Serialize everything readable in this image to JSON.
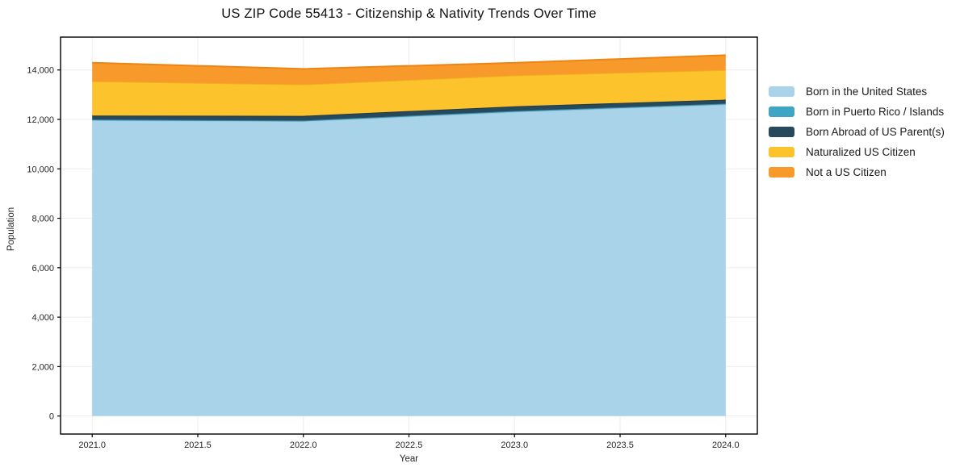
{
  "title": "US ZIP Code 55413 - Citizenship & Nativity Trends Over Time",
  "chart_data": {
    "type": "area",
    "stacked": true,
    "title": "US ZIP Code 55413 - Citizenship & Nativity Trends Over Time",
    "xlabel": "Year",
    "ylabel": "Population",
    "x": [
      2021,
      2022,
      2023,
      2024
    ],
    "series": [
      {
        "name": "Born in the United States",
        "color": "#A8D3E8",
        "edge": "#8FC2DB",
        "values": [
          11970,
          11930,
          12310,
          12610
        ]
      },
      {
        "name": "Born in Puerto Rico / Islands",
        "color": "#3EA5C4",
        "edge": "#338EAD",
        "values": [
          25,
          25,
          30,
          30
        ]
      },
      {
        "name": "Born Abroad of US Parent(s)",
        "color": "#28495C",
        "edge": "#1F3B4B",
        "values": [
          160,
          190,
          190,
          160
        ]
      },
      {
        "name": "Naturalized US Citizen",
        "color": "#FCC32D",
        "edge": "#F1AF1D",
        "values": [
          1390,
          1270,
          1250,
          1200
        ]
      },
      {
        "name": "Not a US Citizen",
        "color": "#F8992C",
        "edge": "#EE8414",
        "values": [
          750,
          630,
          510,
          600
        ]
      }
    ],
    "totals": [
      14295,
      14045,
      14290,
      14600
    ],
    "xlim": [
      2020.85,
      2024.15
    ],
    "ylim": [
      -730,
      15330
    ],
    "xticks": [
      2021.0,
      2021.5,
      2022.0,
      2022.5,
      2023.0,
      2023.5,
      2024.0
    ],
    "yticks": [
      0,
      2000,
      4000,
      6000,
      8000,
      10000,
      12000,
      14000
    ],
    "grid": true,
    "legend_position": "right-outside",
    "plot_border_color": "#000000",
    "background_color": "#ffffff",
    "gridline_color": "#ececf2"
  }
}
